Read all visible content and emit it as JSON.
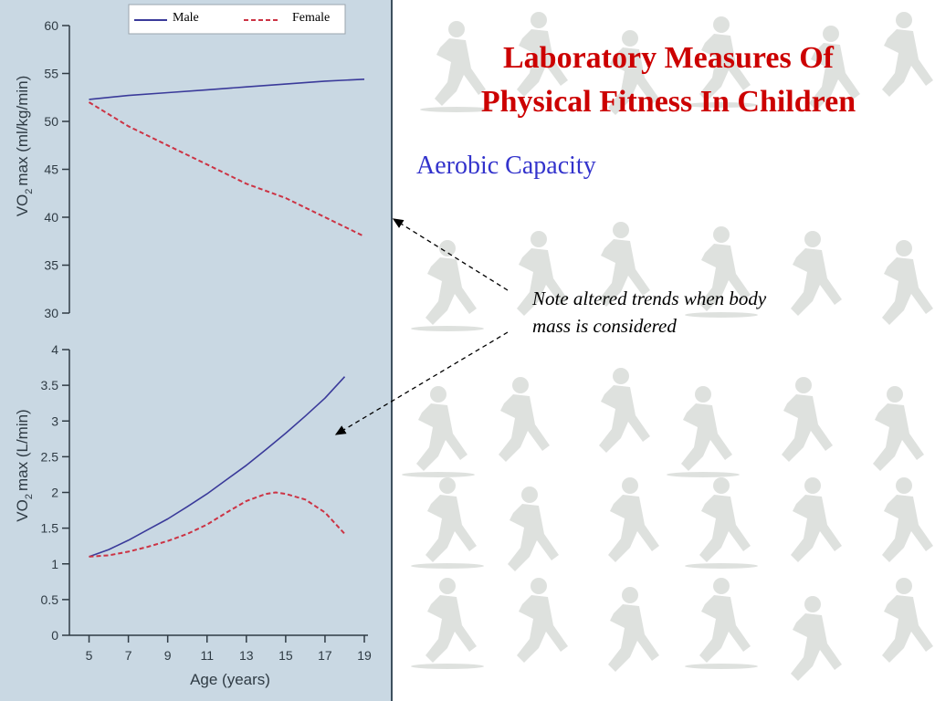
{
  "slide": {
    "title_line1": "Laboratory Measures Of",
    "title_line2": "Physical Fitness In Children",
    "subtitle": "Aerobic Capacity",
    "note_line1": "Note altered trends when body",
    "note_line2": "mass is considered"
  },
  "colors": {
    "title": "#cc0000",
    "subtitle": "#3333cc",
    "male": "#3a3a9a",
    "female": "#cc3344",
    "panel": "#c9d8e3"
  },
  "legend": {
    "male": "Male",
    "female": "Female"
  },
  "chart_data": [
    {
      "type": "line",
      "ylabel_main": "VO",
      "ylabel_sub": "2",
      "ylabel_rest": "max (ml/kg/min)",
      "ylim": [
        30,
        60
      ],
      "yticks": [
        "30",
        "35",
        "40",
        "45",
        "50",
        "55",
        "60"
      ],
      "xlim": [
        4,
        19
      ],
      "series": [
        {
          "name": "Male",
          "style": "solid",
          "x": [
            5,
            7,
            9,
            11,
            13,
            15,
            17,
            19
          ],
          "values": [
            52.3,
            52.7,
            53.0,
            53.3,
            53.6,
            53.9,
            54.2,
            54.4
          ]
        },
        {
          "name": "Female",
          "style": "dashed",
          "x": [
            5,
            7,
            9,
            11,
            13,
            15,
            17,
            19
          ],
          "values": [
            52.0,
            49.5,
            47.5,
            45.5,
            43.5,
            42.0,
            40.0,
            38.0
          ]
        }
      ]
    },
    {
      "type": "line",
      "ylabel_main": "VO",
      "ylabel_sub": "2",
      "ylabel_rest": "max (L/min)",
      "ylim": [
        0,
        4
      ],
      "yticks": [
        "0",
        "0.5",
        "1",
        "1.5",
        "2",
        "2.5",
        "3",
        "3.5",
        "4"
      ],
      "xlim": [
        4,
        19
      ],
      "xlabel": "Age (years)",
      "xticks": [
        "5",
        "7",
        "9",
        "11",
        "13",
        "15",
        "17",
        "19"
      ],
      "series": [
        {
          "name": "Male",
          "style": "solid",
          "x": [
            5,
            6,
            7,
            8,
            9,
            10,
            11,
            12,
            13,
            14,
            15,
            16,
            17,
            18
          ],
          "values": [
            1.1,
            1.2,
            1.33,
            1.48,
            1.63,
            1.8,
            1.98,
            2.18,
            2.38,
            2.6,
            2.83,
            3.07,
            3.32,
            3.62
          ]
        },
        {
          "name": "Female",
          "style": "dashed",
          "x": [
            5,
            6,
            7,
            8,
            9,
            10,
            11,
            12,
            13,
            14,
            14.5,
            15,
            16,
            17,
            18
          ],
          "values": [
            1.1,
            1.12,
            1.17,
            1.24,
            1.32,
            1.42,
            1.55,
            1.72,
            1.88,
            1.98,
            2.0,
            1.98,
            1.9,
            1.72,
            1.42
          ]
        }
      ]
    }
  ]
}
